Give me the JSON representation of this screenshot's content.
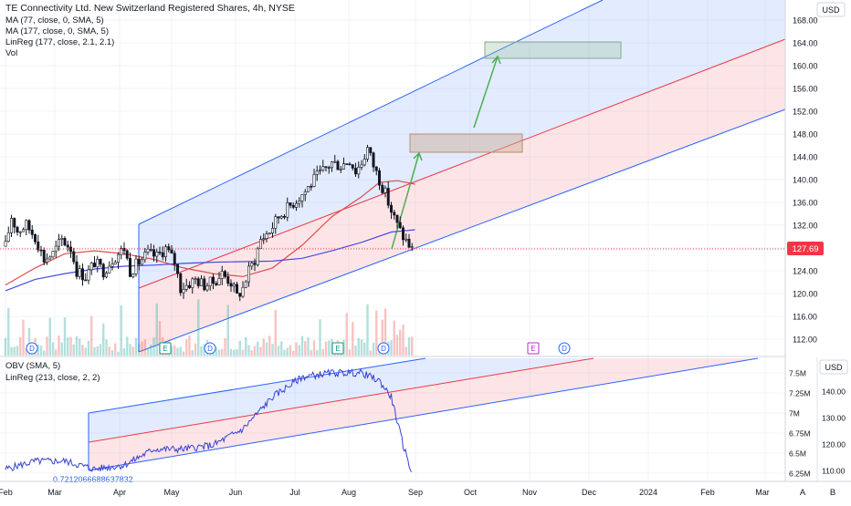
{
  "header": {
    "title": "TE Connectivity Ltd. New Switzerland Registered Shares, 4h, NYSE",
    "indicators": [
      "MA (77, close, 0, SMA, 5)",
      "MA (177, close, 0, SMA, 5)",
      "LinReg (177, close, 2.1, 2.1)",
      "Vol"
    ],
    "currency": "USD"
  },
  "colors": {
    "ma77": "#e04c4c",
    "ma177": "#4a4ae0",
    "channel_blue": "#2962ff",
    "channel_red": "#f23645",
    "candle": "#131722",
    "price_badge": "#f23645",
    "arrow": "#4caf50",
    "obv": "#3742d1"
  },
  "price_axis": {
    "ticks": [
      "168.00",
      "164.00",
      "160.00",
      "156.00",
      "152.00",
      "148.00",
      "144.00",
      "140.00",
      "136.00",
      "132.00",
      "128.00",
      "124.00",
      "120.00",
      "116.00",
      "112.00"
    ],
    "range": [
      110,
      170
    ],
    "last_price": "127.69"
  },
  "obv_panel": {
    "label1": "OBV (SMA, 5)",
    "label2": "LinReg (213, close, 2, 2)",
    "currency": "USD",
    "left_ticks": [
      "7.5M",
      "7.25M",
      "7M",
      "6.75M",
      "6.5M",
      "6.25M"
    ],
    "right_ticks": [
      "140.00",
      "130.00",
      "120.00",
      "110.00"
    ],
    "value_label": "0.7212066688637832"
  },
  "time_axis": {
    "labels": [
      "Feb",
      "Mar",
      "Apr",
      "May",
      "Jun",
      "Jul",
      "Aug",
      "Sep",
      "Oct",
      "Nov",
      "Dec",
      "2024",
      "Feb",
      "Mar"
    ]
  },
  "events": [
    {
      "letter": "D",
      "kind": "dividend"
    },
    {
      "letter": "E",
      "kind": "earnings"
    },
    {
      "letter": "D",
      "kind": "dividend"
    },
    {
      "letter": "E",
      "kind": "earnings"
    },
    {
      "letter": "D",
      "kind": "dividend"
    },
    {
      "letter": "E",
      "kind": "earnings"
    },
    {
      "letter": "D",
      "kind": "dividend"
    }
  ],
  "buttons": {
    "auto": "A",
    "log": "B"
  },
  "chart_data": {
    "type": "line",
    "title": "TE Connectivity Ltd. New Switzerland Registered Shares, 4h, NYSE",
    "x_unit": "months (0 = Feb 2023)",
    "price_series": [
      {
        "x": 0.0,
        "y": 128.3
      },
      {
        "x": 0.1,
        "y": 133.5
      },
      {
        "x": 0.2,
        "y": 131.0
      },
      {
        "x": 0.35,
        "y": 132.0
      },
      {
        "x": 0.5,
        "y": 130.0
      },
      {
        "x": 0.65,
        "y": 126.0
      },
      {
        "x": 0.8,
        "y": 127.0
      },
      {
        "x": 0.95,
        "y": 129.5
      },
      {
        "x": 1.1,
        "y": 128.0
      },
      {
        "x": 1.2,
        "y": 124.0
      },
      {
        "x": 1.35,
        "y": 123.0
      },
      {
        "x": 1.5,
        "y": 125.5
      },
      {
        "x": 1.65,
        "y": 124.0
      },
      {
        "x": 1.8,
        "y": 126.0
      },
      {
        "x": 2.0,
        "y": 128.0
      },
      {
        "x": 2.1,
        "y": 124.0
      },
      {
        "x": 2.25,
        "y": 125.5
      },
      {
        "x": 2.4,
        "y": 127.0
      },
      {
        "x": 2.55,
        "y": 126.5
      },
      {
        "x": 2.7,
        "y": 128.0
      },
      {
        "x": 2.85,
        "y": 125.5
      },
      {
        "x": 2.95,
        "y": 121.0
      },
      {
        "x": 3.05,
        "y": 121.5
      },
      {
        "x": 3.2,
        "y": 122.5
      },
      {
        "x": 3.35,
        "y": 121.5
      },
      {
        "x": 3.5,
        "y": 122.0
      },
      {
        "x": 3.65,
        "y": 123.5
      },
      {
        "x": 3.8,
        "y": 122.0
      },
      {
        "x": 3.9,
        "y": 119.5
      },
      {
        "x": 4.0,
        "y": 121.0
      },
      {
        "x": 4.1,
        "y": 124.0
      },
      {
        "x": 4.2,
        "y": 126.0
      },
      {
        "x": 4.3,
        "y": 129.5
      },
      {
        "x": 4.45,
        "y": 131.0
      },
      {
        "x": 4.6,
        "y": 133.5
      },
      {
        "x": 4.75,
        "y": 135.0
      },
      {
        "x": 4.9,
        "y": 136.5
      },
      {
        "x": 5.05,
        "y": 138.0
      },
      {
        "x": 5.2,
        "y": 140.0
      },
      {
        "x": 5.35,
        "y": 141.5
      },
      {
        "x": 5.5,
        "y": 143.0
      },
      {
        "x": 5.65,
        "y": 142.5
      },
      {
        "x": 5.8,
        "y": 143.5
      },
      {
        "x": 5.9,
        "y": 141.5
      },
      {
        "x": 6.0,
        "y": 143.0
      },
      {
        "x": 6.1,
        "y": 145.5
      },
      {
        "x": 6.2,
        "y": 142.5
      },
      {
        "x": 6.3,
        "y": 140.0
      },
      {
        "x": 6.4,
        "y": 137.5
      },
      {
        "x": 6.5,
        "y": 134.5
      },
      {
        "x": 6.6,
        "y": 132.0
      },
      {
        "x": 6.7,
        "y": 130.0
      },
      {
        "x": 6.8,
        "y": 128.5
      },
      {
        "x": 6.85,
        "y": 127.7
      }
    ],
    "ma77": [
      {
        "x": 0.0,
        "y": 121.5
      },
      {
        "x": 0.5,
        "y": 124.5
      },
      {
        "x": 1.0,
        "y": 127.0
      },
      {
        "x": 1.5,
        "y": 127.5
      },
      {
        "x": 2.0,
        "y": 127.0
      },
      {
        "x": 2.5,
        "y": 126.0
      },
      {
        "x": 3.0,
        "y": 124.5
      },
      {
        "x": 3.5,
        "y": 123.5
      },
      {
        "x": 4.0,
        "y": 123.0
      },
      {
        "x": 4.5,
        "y": 124.5
      },
      {
        "x": 5.0,
        "y": 128.5
      },
      {
        "x": 5.5,
        "y": 133.5
      },
      {
        "x": 6.0,
        "y": 137.0
      },
      {
        "x": 6.3,
        "y": 139.5
      },
      {
        "x": 6.6,
        "y": 139.8
      },
      {
        "x": 6.9,
        "y": 139.2
      }
    ],
    "ma177": [
      {
        "x": 0.0,
        "y": 120.5
      },
      {
        "x": 0.5,
        "y": 122.5
      },
      {
        "x": 1.0,
        "y": 123.5
      },
      {
        "x": 1.5,
        "y": 124.3
      },
      {
        "x": 2.0,
        "y": 124.8
      },
      {
        "x": 2.5,
        "y": 125.0
      },
      {
        "x": 3.0,
        "y": 125.3
      },
      {
        "x": 3.5,
        "y": 125.5
      },
      {
        "x": 4.0,
        "y": 125.6
      },
      {
        "x": 4.5,
        "y": 125.7
      },
      {
        "x": 5.0,
        "y": 126.2
      },
      {
        "x": 5.5,
        "y": 127.5
      },
      {
        "x": 6.0,
        "y": 129.0
      },
      {
        "x": 6.5,
        "y": 130.8
      },
      {
        "x": 6.9,
        "y": 131.2
      }
    ],
    "obv": [
      {
        "x": 0.0,
        "y": 6.3
      },
      {
        "x": 0.5,
        "y": 6.4
      },
      {
        "x": 1.0,
        "y": 6.4
      },
      {
        "x": 1.5,
        "y": 6.3
      },
      {
        "x": 2.0,
        "y": 6.35
      },
      {
        "x": 2.5,
        "y": 6.55
      },
      {
        "x": 3.0,
        "y": 6.55
      },
      {
        "x": 3.5,
        "y": 6.6
      },
      {
        "x": 4.0,
        "y": 6.8
      },
      {
        "x": 4.5,
        "y": 7.2
      },
      {
        "x": 5.0,
        "y": 7.45
      },
      {
        "x": 5.5,
        "y": 7.5
      },
      {
        "x": 6.0,
        "y": 7.5
      },
      {
        "x": 6.3,
        "y": 7.4
      },
      {
        "x": 6.5,
        "y": 7.2
      },
      {
        "x": 6.7,
        "y": 6.6
      },
      {
        "x": 6.85,
        "y": 6.25
      }
    ]
  }
}
